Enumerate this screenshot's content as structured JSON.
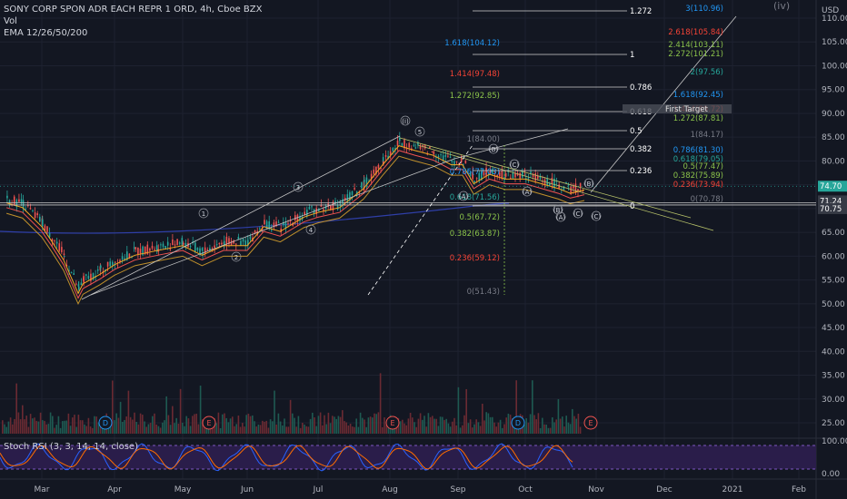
{
  "header": {
    "symbol_line": "SONY CORP SPON ADR EACH REPR 1 ORD, 4h, Cboe BZX",
    "vol_label": "Vol",
    "ema_label": "EMA 12/26/50/200",
    "stoch_label": "Stoch RSI (3, 3, 14, 14, close)",
    "wave_iv": "(iv)",
    "currency": "USD"
  },
  "colors": {
    "background": "#131722",
    "grid": "#1e2230",
    "axis_text": "#b2b5be",
    "candle_up": "#26a69a",
    "candle_down": "#ef5350",
    "ema12": "#f5a623",
    "ema26": "#ef5350",
    "ema50": "#c0902b",
    "ema200": "#2f3fa8",
    "fib_white": "#ffffff",
    "fib_blue": "#2196f3",
    "fib_red": "#f44336",
    "fib_green": "#8bc34a",
    "fib_teal": "#26a69a",
    "price_current_bg": "#26a69a",
    "stoch_k": "#2962ff",
    "stoch_d": "#ff6d00",
    "stoch_band": "#7e57c2"
  },
  "chart_data": {
    "type": "candlestick",
    "price_axis": {
      "range": [
        20,
        115
      ],
      "ticks": [
        110,
        105,
        100,
        95,
        90,
        85,
        80,
        75,
        70,
        65,
        60,
        55,
        50,
        45,
        40,
        35,
        30,
        25
      ]
    },
    "time_axis": {
      "ticks": [
        "Mar",
        "Apr",
        "May",
        "Jun",
        "Jul",
        "Aug",
        "Sep",
        "Oct",
        "Nov",
        "Dec",
        "2021",
        "Feb"
      ]
    },
    "price_tags": [
      {
        "label": "74.70",
        "value": 74.7,
        "color": "#26a69a"
      },
      {
        "label": "71.24",
        "value": 71.24,
        "color": "#363a45"
      },
      {
        "label": "70.75",
        "value": 70.75,
        "color": "#363a45"
      }
    ],
    "key_levels": [
      71.24,
      70.75
    ],
    "price_path": [
      [
        "Feb 20",
        72
      ],
      [
        "Feb 25",
        71
      ],
      [
        "Mar 1",
        67
      ],
      [
        "Mar 5",
        64
      ],
      [
        "Mar 10",
        60
      ],
      [
        "Mar 16",
        53
      ],
      [
        "Mar 18",
        55
      ],
      [
        "Mar 25",
        57
      ],
      [
        "Apr 1",
        59
      ],
      [
        "Apr 10",
        61
      ],
      [
        "Apr 20",
        62
      ],
      [
        "May 1",
        63
      ],
      [
        "May 10",
        61
      ],
      [
        "May 20",
        63
      ],
      [
        "Jun 1",
        63
      ],
      [
        "Jun 8",
        67
      ],
      [
        "Jun 15",
        66
      ],
      [
        "Jun 25",
        69
      ],
      [
        "Jul 1",
        70
      ],
      [
        "Jul 10",
        71
      ],
      [
        "Jul 20",
        75
      ],
      [
        "Jul 28",
        80
      ],
      [
        "Aug 5",
        84
      ],
      [
        "Aug 12",
        83
      ],
      [
        "Aug 20",
        82
      ],
      [
        "Aug 28",
        80
      ],
      [
        "Sep 3",
        80
      ],
      [
        "Sep 8",
        76
      ],
      [
        "Sep 15",
        78
      ],
      [
        "Sep 22",
        77
      ],
      [
        "Oct 1",
        77
      ],
      [
        "Oct 8",
        76
      ],
      [
        "Oct 15",
        75
      ],
      [
        "Oct 20",
        74
      ],
      [
        "Oct 26",
        74.7
      ]
    ],
    "fib_right": [
      {
        "label": "3(110.96)",
        "color": "#2196f3"
      },
      {
        "label": "2.618(105.84)",
        "color": "#f44336"
      },
      {
        "label": "2.414(103.11)",
        "color": "#8bc34a"
      },
      {
        "label": "2.272(101.21)",
        "color": "#8bc34a"
      },
      {
        "label": "2(97.56)",
        "color": "#26a69a"
      },
      {
        "label": "1.618(92.45)",
        "color": "#2196f3"
      },
      {
        "label": "1.414(89.72)",
        "color": "#f44336"
      },
      {
        "label": "1.272(87.81)",
        "color": "#8bc34a"
      },
      {
        "label": "1(84.17)",
        "color": "#787b86"
      },
      {
        "label": "0.786(81.30)",
        "color": "#2196f3"
      },
      {
        "label": "0.618(79.05)",
        "color": "#26a69a"
      },
      {
        "label": "0.5(77.47)",
        "color": "#8bc34a"
      },
      {
        "label": "0.382(75.89)",
        "color": "#8bc34a"
      },
      {
        "label": "0.236(73.94)",
        "color": "#f44336"
      },
      {
        "label": "0(70.78)",
        "color": "#787b86"
      }
    ],
    "fib_mid": [
      {
        "label": "1.618(104.12)",
        "color": "#2196f3"
      },
      {
        "label": "1.414(97.48)",
        "color": "#f44336"
      },
      {
        "label": "1.272(92.85)",
        "color": "#8bc34a"
      },
      {
        "label": "1(84.00)",
        "color": "#787b86"
      },
      {
        "label": "0.786(77.03)",
        "color": "#2196f3"
      },
      {
        "label": "0.618(71.56)",
        "color": "#26a69a"
      },
      {
        "label": "0.5(67.72)",
        "color": "#8bc34a"
      },
      {
        "label": "0.382(63.87)",
        "color": "#8bc34a"
      },
      {
        "label": "0.236(59.12)",
        "color": "#f44336"
      },
      {
        "label": "0(51.43)",
        "color": "#787b86"
      }
    ],
    "fib_white": [
      "1.272",
      "1",
      "0.786",
      "0.618",
      "0.5",
      "0.382",
      "0.236",
      "0"
    ],
    "first_target": "First Target",
    "wave_labels": [
      "(i)",
      "1",
      "2",
      "3",
      "4",
      "5",
      "(A)",
      "(B)",
      "(C)",
      "(A)",
      "(B)",
      "(C)",
      "(A)",
      "(B)",
      "(C)"
    ],
    "earnings_markers": [
      "D",
      "E",
      "E",
      "D",
      "E"
    ],
    "stoch_axis": {
      "ticks": [
        "100.00",
        "0.00"
      ]
    }
  }
}
